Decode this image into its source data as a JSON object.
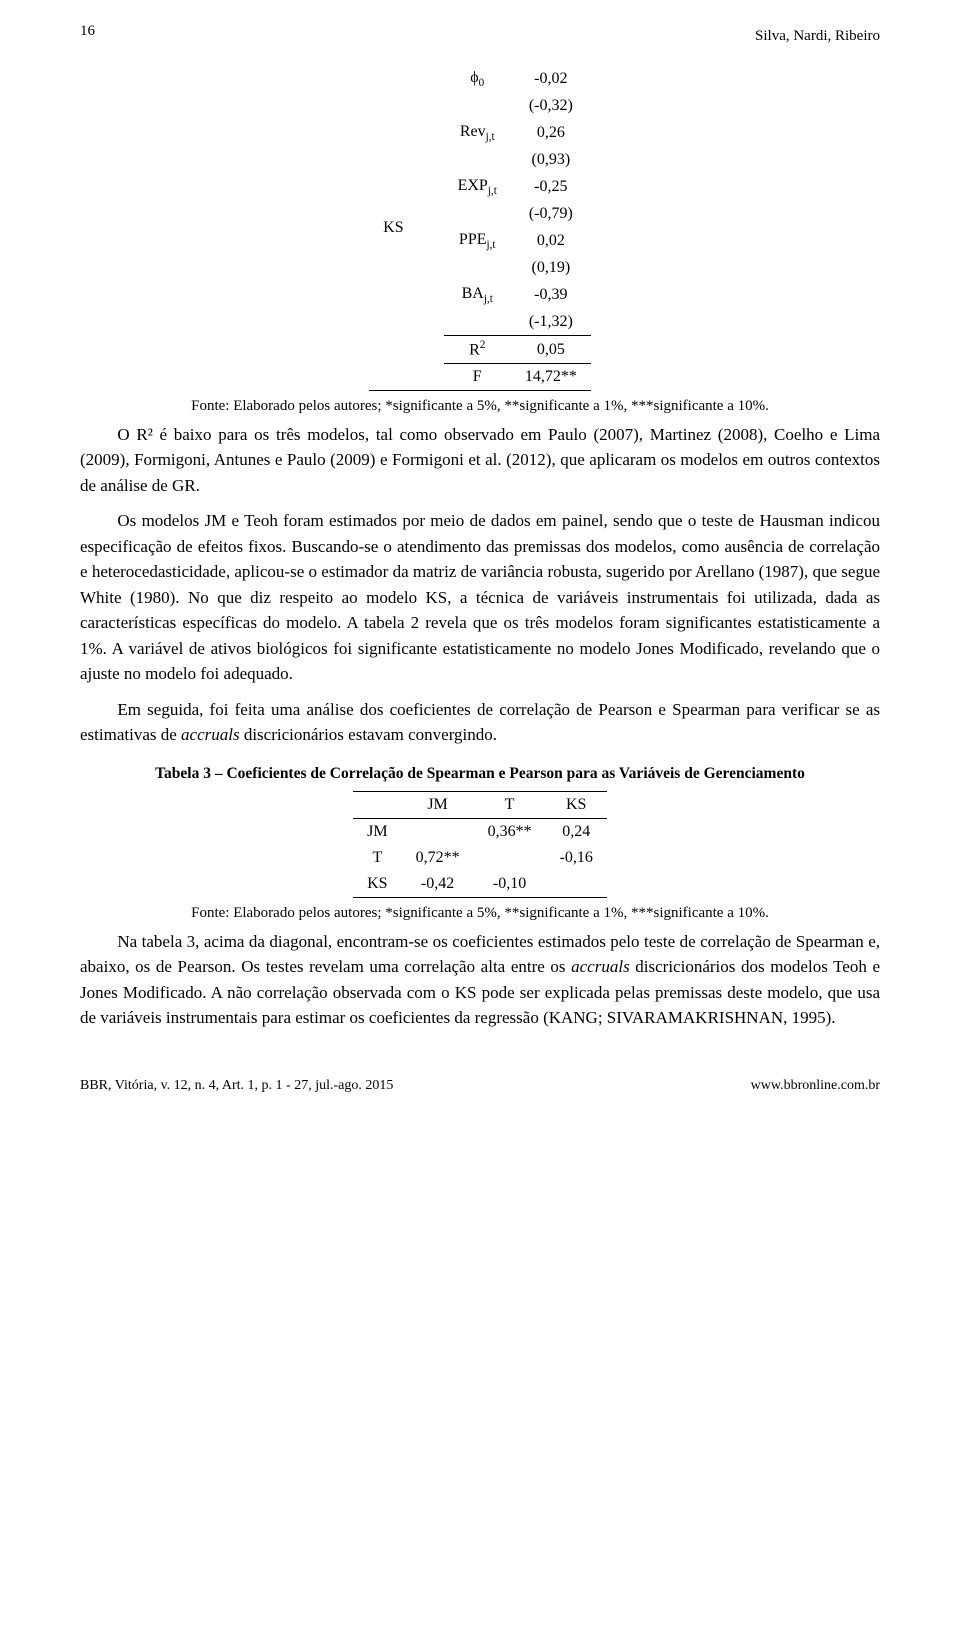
{
  "header": {
    "page_number": "16",
    "running_head": "Silva, Nardi, Ribeiro"
  },
  "table2": {
    "model_label": "KS",
    "rows": [
      {
        "param": "ϕ",
        "param_sub": "0",
        "val1": "-0,02",
        "val2": "(-0,32)"
      },
      {
        "param": "Rev",
        "param_sub": "j,t",
        "val1": "0,26",
        "val2": "(0,93)"
      },
      {
        "param": "EXP",
        "param_sub": "j,t",
        "val1": "-0,25",
        "val2": "(-0,79)"
      },
      {
        "param": "PPE",
        "param_sub": "j,t",
        "val1": "0,02",
        "val2": "(0,19)"
      },
      {
        "param": "BA",
        "param_sub": "j,t",
        "val1": "-0,39",
        "val2": "(-1,32)"
      },
      {
        "param": "R",
        "param_sup": "2",
        "val1": "0,05"
      },
      {
        "param": "F",
        "val1": "14,72**"
      }
    ],
    "source": "Fonte: Elaborado pelos autores; *significante a 5%, **significante a 1%, ***significante a 10%."
  },
  "para1": "O R² é baixo para os três modelos, tal como observado em Paulo (2007), Martinez (2008), Coelho e Lima (2009), Formigoni, Antunes e Paulo (2009) e Formigoni et al. (2012), que aplicaram os modelos em outros contextos de análise de GR.",
  "para2a": "Os modelos JM e Teoh foram estimados por meio de dados em painel, sendo que o teste de Hausman indicou especificação de efeitos fixos. Buscando-se o atendimento das premissas dos modelos, como ausência de correlação e heterocedasticidade, aplicou-se o estimador da matriz de variância robusta, sugerido por Arellano (1987), que segue White (1980). No que diz respeito ao modelo KS, a técnica de variáveis instrumentais foi utilizada, dada as características específicas do modelo. A tabela 2 revela que os três modelos foram significantes estatisticamente a 1%. A variável de ativos biológicos foi significante estatisticamente no modelo Jones Modificado, revelando que o ajuste no modelo foi adequado.",
  "para3_head": "Em seguida, foi feita uma análise dos coeficientes de correlação de Pearson e Spearman para verificar se as estimativas de ",
  "para3_em": "accruals",
  "para3_tail": " discricionários estavam convergindo.",
  "table3": {
    "caption": "Tabela 3 – Coeficientes de Correlação de Spearman e Pearson para as Variáveis de Gerenciamento",
    "cols": [
      "",
      "JM",
      "T",
      "KS"
    ],
    "rows": [
      {
        "label": "JM",
        "c1": "",
        "c2": "0,36**",
        "c3": "0,24"
      },
      {
        "label": "T",
        "c1": "0,72**",
        "c2": "",
        "c3": "-0,16"
      },
      {
        "label": "KS",
        "c1": "-0,42",
        "c2": "-0,10",
        "c3": ""
      }
    ],
    "source": "Fonte: Elaborado pelos autores; *significante a 5%, **significante a 1%, ***significante a 10%."
  },
  "para4_head": "Na tabela 3, acima da diagonal, encontram-se os coeficientes estimados pelo teste de correlação de Spearman e, abaixo, os de Pearson. Os testes revelam uma correlação alta entre os ",
  "para4_em": "accruals",
  "para4_tail": " discricionários dos modelos Teoh e Jones Modificado. A não correlação observada com o KS pode ser explicada pelas premissas deste modelo, que usa de variáveis instrumentais para estimar os coeficientes da regressão (KANG; SIVARAMAKRISHNAN, 1995).",
  "footer": {
    "left": "BBR, Vitória, v. 12, n. 4, Art. 1, p. 1 - 27, jul.-ago. 2015",
    "right": "www.bbronline.com.br"
  }
}
